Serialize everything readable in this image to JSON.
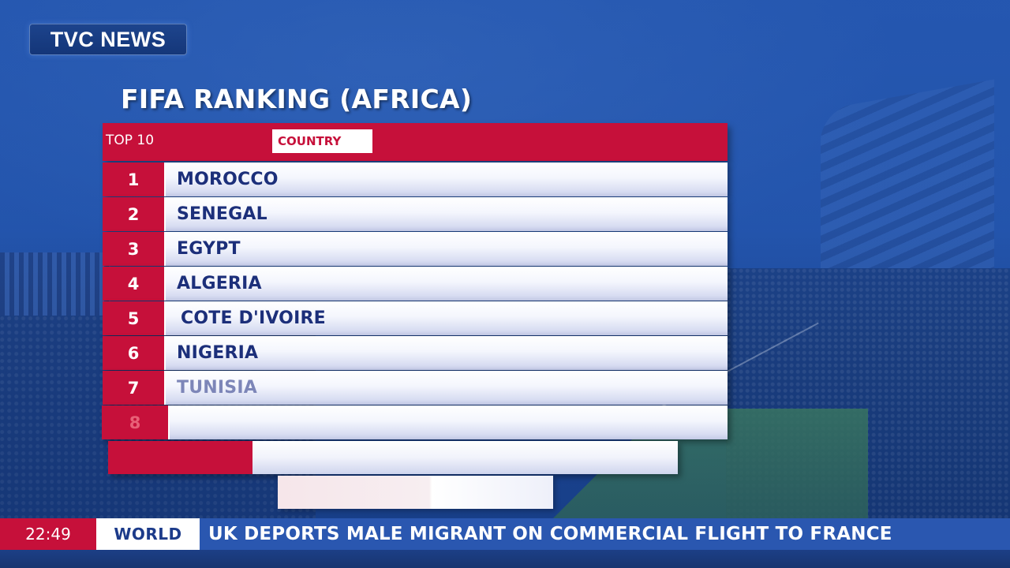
{
  "channel": {
    "logo_text": "TVC NEWS"
  },
  "graphic": {
    "title": "FIFA RANKING (AFRICA)",
    "header": {
      "rank_label": "TOP 10",
      "country_label": "COUNTRY"
    },
    "rows": [
      {
        "rank": "1",
        "country": "MOROCCO"
      },
      {
        "rank": "2",
        "country": "SENEGAL"
      },
      {
        "rank": "3",
        "country": "EGYPT"
      },
      {
        "rank": "4",
        "country": "ALGERIA"
      },
      {
        "rank": "5",
        "country": "COTE D'IVOIRE"
      },
      {
        "rank": "6",
        "country": "NIGERIA"
      },
      {
        "rank": "7",
        "country": "TUNISIA"
      },
      {
        "rank": "8",
        "country": ""
      }
    ]
  },
  "ticker": {
    "time": "22:49",
    "category": "WORLD",
    "headline": "UK DEPORTS MALE MIGRANT ON COMMERCIAL FLIGHT TO FRANCE"
  },
  "colors": {
    "brand_red": "#c6103a",
    "brand_blue": "#2a57b0",
    "text_navy": "#1c2f7a"
  }
}
